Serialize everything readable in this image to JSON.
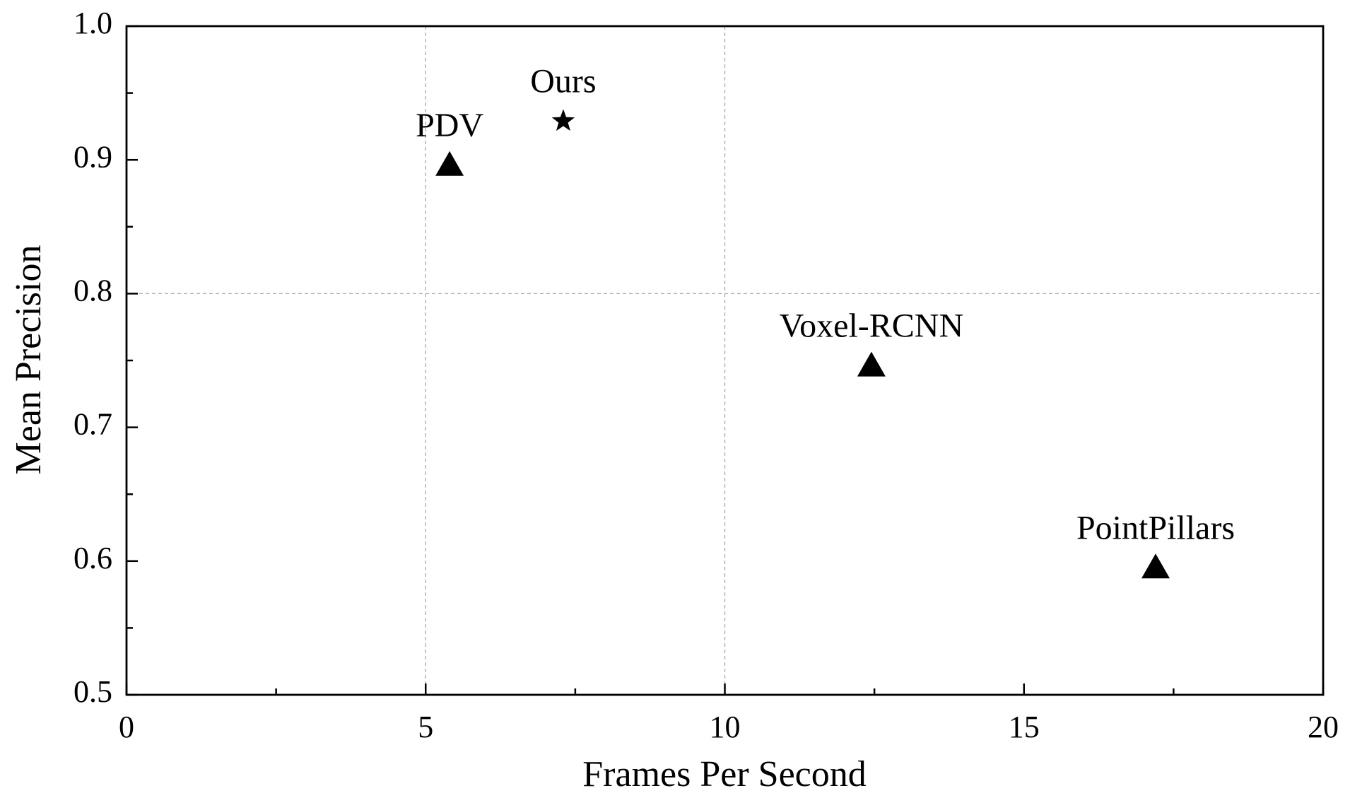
{
  "chart_data": {
    "type": "scatter",
    "xlabel": "Frames Per Second",
    "ylabel": "Mean Precision",
    "points": [
      {
        "name": "PDV",
        "x": 5.4,
        "y": 0.896,
        "marker": "triangle"
      },
      {
        "name": "Ours",
        "x": 7.3,
        "y": 0.929,
        "marker": "star"
      },
      {
        "name": "Voxel-RCNN",
        "x": 12.45,
        "y": 0.746,
        "marker": "triangle"
      },
      {
        "name": "PointPillars",
        "x": 17.2,
        "y": 0.595,
        "marker": "triangle"
      }
    ],
    "color": "#000000",
    "xlim": [
      0,
      20
    ],
    "xticks": [
      0,
      5,
      10,
      15,
      20
    ],
    "ylim": [
      0.5,
      1.0
    ],
    "yticks": [
      0.5,
      0.6,
      0.7,
      0.8,
      0.9,
      {
        "value": 1.0,
        "label": "1.0"
      }
    ],
    "xgrid": [
      5,
      10
    ],
    "ygrid": [
      0.8
    ]
  }
}
